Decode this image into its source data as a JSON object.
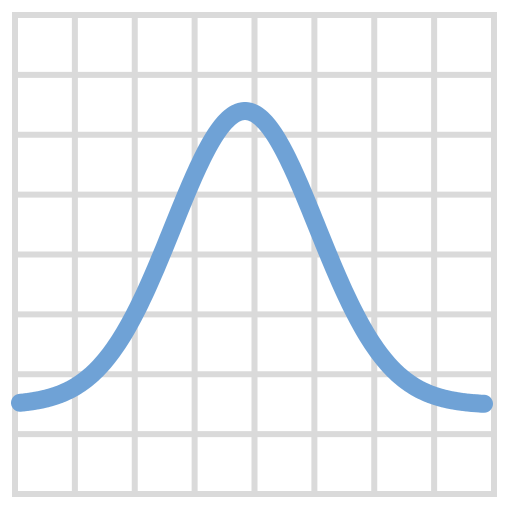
{
  "icon": {
    "name": "bell-curve-chart-icon",
    "grid_color": "#dadada",
    "curve_color": "#6fa2d6",
    "background_color": "#ffffff",
    "grid_columns": 8,
    "grid_rows": 8
  }
}
